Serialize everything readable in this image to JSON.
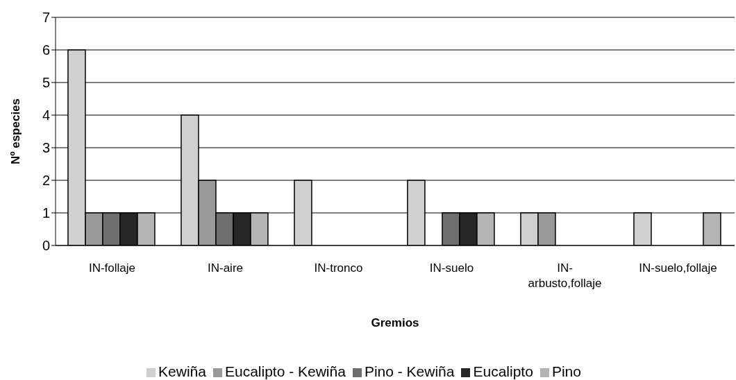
{
  "chart_data": {
    "type": "bar",
    "xlabel": "Gremios",
    "ylabel": "Nº especies",
    "categories": [
      "IN-follaje",
      "IN-aire",
      "IN-tronco",
      "IN-suelo",
      "IN-arbusto,follaje",
      "IN-suelo,follaje"
    ],
    "series": [
      {
        "name": "Kewiña",
        "color": "#d0d0d0",
        "values": [
          6,
          4,
          2,
          2,
          1,
          1
        ]
      },
      {
        "name": "Eucalipto - Kewiña",
        "color": "#999999",
        "values": [
          1,
          2,
          0,
          0,
          1,
          0
        ]
      },
      {
        "name": "Pino - Kewiña",
        "color": "#6e6e6e",
        "values": [
          1,
          1,
          0,
          1,
          0,
          0
        ]
      },
      {
        "name": "Eucalipto",
        "color": "#262626",
        "values": [
          1,
          1,
          0,
          1,
          0,
          0
        ]
      },
      {
        "name": "Pino",
        "color": "#b4b4b4",
        "values": [
          1,
          1,
          0,
          1,
          0,
          1
        ]
      }
    ],
    "ylim": [
      0,
      7
    ],
    "yticks": [
      0,
      1,
      2,
      3,
      4,
      5,
      6,
      7
    ],
    "grid": "y",
    "legend": "bottom"
  }
}
